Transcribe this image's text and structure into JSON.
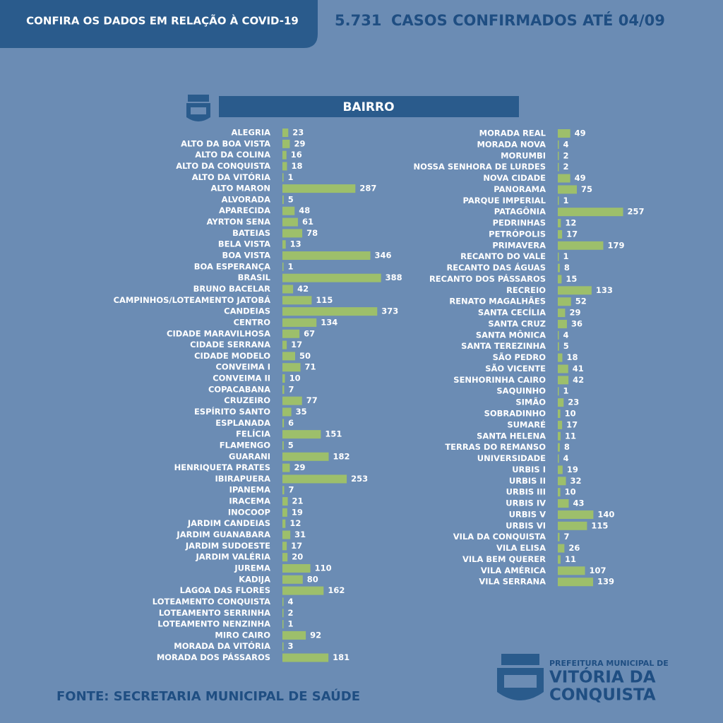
{
  "header": {
    "tab": "CONFIRA OS DADOS EM RELAÇÃO À COVID-19",
    "total": "5.731",
    "caption": "CASOS CONFIRMADOS ATÉ 04/09"
  },
  "section_title": "BAIRRO",
  "chart_data": [
    {
      "type": "bar",
      "orientation": "horizontal",
      "color": "#9dbf6b",
      "categories": [
        "ALEGRIA",
        "ALTO DA BOA VISTA",
        "ALTO DA COLINA",
        "ALTO DA CONQUISTA",
        "ALTO DA VITÓRIA",
        "ALTO MARON",
        "ALVORADA",
        "APARECIDA",
        "AYRTON SENA",
        "BATEIAS",
        "BELA VISTA",
        "BOA VISTA",
        "BOA ESPERANÇA",
        "BRASIL",
        "BRUNO BACELAR",
        "CAMPINHOS/LOTEAMENTO JATOBÁ",
        "CANDEIAS",
        "CENTRO",
        "CIDADE MARAVILHOSA",
        "CIDADE SERRANA",
        "CIDADE MODELO",
        "CONVEIMA I",
        "CONVEIMA II",
        "COPACABANA",
        "CRUZEIRO",
        "ESPÍRITO SANTO",
        "ESPLANADA",
        "FELÍCIA",
        "FLAMENGO",
        "GUARANI",
        "HENRIQUETA PRATES",
        "IBIRAPUERA",
        "IPANEMA",
        "IRACEMA",
        "INOCOOP",
        "JARDIM CANDEIAS",
        "JARDIM GUANABARA",
        "JARDIM SUDOESTE",
        "JARDIM VALÉRIA",
        "JUREMA",
        "KADIJA",
        "LAGOA DAS FLORES",
        "LOTEAMENTO CONQUISTA",
        "LOTEAMENTO SERRINHA",
        "LOTEAMENTO NENZINHA",
        "MIRO CAIRO",
        "MORADA DA VITÓRIA",
        "MORADA DOS PÁSSAROS"
      ],
      "values": [
        23,
        29,
        16,
        18,
        1,
        287,
        5,
        48,
        61,
        78,
        13,
        346,
        1,
        388,
        42,
        115,
        373,
        134,
        67,
        17,
        50,
        71,
        10,
        7,
        77,
        35,
        6,
        151,
        5,
        182,
        29,
        253,
        7,
        21,
        19,
        12,
        31,
        17,
        20,
        110,
        80,
        162,
        4,
        2,
        1,
        92,
        3,
        181
      ]
    },
    {
      "type": "bar",
      "orientation": "horizontal",
      "color": "#9dbf6b",
      "categories": [
        "MORADA REAL",
        "MORADA NOVA",
        "MORUMBI",
        "NOSSA SENHORA DE LURDES",
        "NOVA CIDADE",
        "PANORAMA",
        "PARQUE IMPERIAL",
        "PATAGÔNIA",
        "PEDRINHAS",
        "PETRÓPOLIS",
        "PRIMAVERA",
        "RECANTO DO VALE",
        "RECANTO DAS ÁGUAS",
        "RECANTO DOS PÁSSAROS",
        "RECREIO",
        "RENATO MAGALHÃES",
        "SANTA CECÍLIA",
        "SANTA CRUZ",
        "SANTA MÔNICA",
        "SANTA TEREZINHA",
        "SÃO PEDRO",
        "SÃO VICENTE",
        "SENHORINHA CAIRO",
        "SAQUINHO",
        "SIMÃO",
        "SOBRADINHO",
        "SUMARÉ",
        "SANTA HELENA",
        "TERRAS DO REMANSO",
        "UNIVERSIDADE",
        "URBIS I",
        "URBIS II",
        "URBIS III",
        "URBIS IV",
        "URBIS V",
        "URBIS VI",
        "VILA DA CONQUISTA",
        "VILA ELISA",
        "VILA BEM QUERER",
        "VILA AMÉRICA",
        "VILA SERRANA"
      ],
      "values": [
        49,
        4,
        2,
        2,
        49,
        75,
        1,
        257,
        12,
        17,
        179,
        1,
        8,
        15,
        133,
        52,
        29,
        36,
        4,
        5,
        18,
        41,
        42,
        1,
        23,
        10,
        17,
        11,
        8,
        4,
        19,
        32,
        10,
        43,
        140,
        115,
        7,
        26,
        11,
        107,
        139
      ]
    }
  ],
  "footer": {
    "source": "FONTE: SECRETARIA MUNICIPAL DE SAÚDE",
    "logo_line1": "PREFEITURA MUNICIPAL DE",
    "logo_line2": "VITÓRIA DA",
    "logo_line3": "CONQUISTA"
  }
}
